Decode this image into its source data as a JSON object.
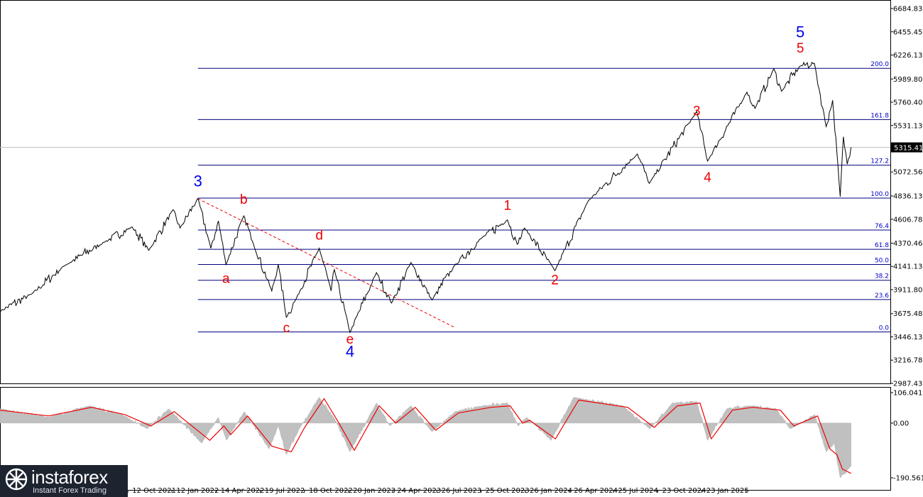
{
  "chart_data": [
    {
      "type": "line",
      "panel": "price",
      "last_price_label": "5315.41",
      "ylim": [
        2987.43,
        6684.83
      ],
      "price_ticks": [
        "6684.83",
        "6455.45",
        "6226.13",
        "5989.80",
        "5760.40",
        "5531.13",
        "5301.89",
        "5072.56",
        "4836.13",
        "4606.78",
        "4370.46",
        "4141.13",
        "3911.80",
        "3675.48",
        "3446.13",
        "3216.78",
        "2987.43"
      ],
      "x_labels": [
        "13 Jul 2021",
        "12 Oct 2021",
        "12 Jan 2022",
        "14 Apr 2022",
        "19 Jul 2022",
        "18 Oct 2022",
        "20 Jan 2023",
        "24 Apr 2023",
        "26 Jul 2023",
        "25 Oct 2023",
        "26 Jan 2024",
        "26 Apr 2024",
        "25 Jul 2024",
        "23 Oct 2024",
        "23 Jan 2025"
      ],
      "fib_levels": [
        {
          "label": "200.0",
          "price": 6095
        },
        {
          "label": "161.8",
          "price": 5590
        },
        {
          "label": "127.2",
          "price": 5140
        },
        {
          "label": "100.0",
          "price": 4815
        },
        {
          "label": "76.4",
          "price": 4500
        },
        {
          "label": "61.8",
          "price": 4310
        },
        {
          "label": "50.0",
          "price": 4160
        },
        {
          "label": "38.2",
          "price": 4005
        },
        {
          "label": "23.6",
          "price": 3815
        },
        {
          "label": "0.0",
          "price": 3495
        }
      ],
      "series": [
        {
          "values": [
            [
              "2021-01-01",
              3700
            ],
            [
              "2021-03-01",
              3870
            ],
            [
              "2021-05-01",
              4150
            ],
            [
              "2021-07-13",
              4380
            ],
            [
              "2021-09-03",
              4530
            ],
            [
              "2021-10-04",
              4300
            ],
            [
              "2021-11-18",
              4700
            ],
            [
              "2021-12-01",
              4520
            ],
            [
              "2022-01-03",
              4810
            ],
            [
              "2022-01-27",
              4320
            ],
            [
              "2022-02-10",
              4590
            ],
            [
              "2022-02-24",
              4160
            ],
            [
              "2022-03-29",
              4640
            ],
            [
              "2022-04-14",
              4390
            ],
            [
              "2022-05-20",
              3900
            ],
            [
              "2022-06-01",
              4160
            ],
            [
              "2022-06-16",
              3640
            ],
            [
              "2022-07-05",
              3830
            ],
            [
              "2022-08-16",
              4320
            ],
            [
              "2022-09-07",
              3900
            ],
            [
              "2022-09-13",
              4110
            ],
            [
              "2022-10-12",
              3490
            ],
            [
              "2022-11-30",
              4080
            ],
            [
              "2022-12-28",
              3780
            ],
            [
              "2023-02-02",
              4180
            ],
            [
              "2023-03-13",
              3810
            ],
            [
              "2023-04-24",
              4150
            ],
            [
              "2023-06-15",
              4430
            ],
            [
              "2023-07-31",
              4600
            ],
            [
              "2023-08-18",
              4360
            ],
            [
              "2023-09-01",
              4520
            ],
            [
              "2023-10-27",
              4100
            ],
            [
              "2023-12-28",
              4790
            ],
            [
              "2024-03-28",
              5250
            ],
            [
              "2024-04-19",
              4960
            ],
            [
              "2024-07-16",
              5670
            ],
            [
              "2024-08-05",
              5180
            ],
            [
              "2024-10-17",
              5860
            ],
            [
              "2024-11-01",
              5700
            ],
            [
              "2024-12-06",
              6090
            ],
            [
              "2024-12-20",
              5870
            ],
            [
              "2025-01-24",
              6120
            ],
            [
              "2025-02-19",
              6145
            ],
            [
              "2025-03-13",
              5520
            ],
            [
              "2025-03-25",
              5780
            ],
            [
              "2025-04-08",
              4830
            ],
            [
              "2025-04-14",
              5420
            ],
            [
              "2025-04-21",
              5150
            ],
            [
              "2025-04-28",
              5315
            ]
          ]
        }
      ],
      "annotations": [
        {
          "text": "3",
          "color": "blue",
          "date": "2022-01-03",
          "price": 4930
        },
        {
          "text": "b",
          "color": "red",
          "date": "2022-03-29",
          "price": 4760
        },
        {
          "text": "a",
          "color": "red",
          "date": "2022-02-24",
          "price": 3980
        },
        {
          "text": "d",
          "color": "red",
          "date": "2022-08-16",
          "price": 4405
        },
        {
          "text": "c",
          "color": "red",
          "date": "2022-06-16",
          "price": 3490
        },
        {
          "text": "e",
          "color": "red",
          "date": "2022-10-12",
          "price": 3380
        },
        {
          "text": "4",
          "color": "blue",
          "date": "2022-10-12",
          "price": 3250
        },
        {
          "text": "1",
          "color": "red",
          "date": "2023-07-31",
          "price": 4700
        },
        {
          "text": "2",
          "color": "red",
          "date": "2023-10-27",
          "price": 3965
        },
        {
          "text": "3",
          "color": "red",
          "date": "2024-07-16",
          "price": 5630
        },
        {
          "text": "4",
          "color": "red",
          "date": "2024-08-05",
          "price": 4975
        },
        {
          "text": "5",
          "color": "red",
          "date": "2025-01-24",
          "price": 6250
        },
        {
          "text": "5",
          "color": "blue",
          "date": "2025-01-24",
          "price": 6400
        }
      ],
      "trendline": {
        "style": "dashed",
        "color": "#ee0000",
        "from": [
          "2022-01-03",
          4810
        ],
        "to": [
          "2023-04-24",
          3540
        ]
      }
    },
    {
      "type": "area",
      "panel": "oscillator",
      "ticks": [
        "106.041",
        "0.00",
        "-190.561"
      ],
      "ylim": [
        -190.561,
        106.041
      ],
      "histogram": [
        [
          "2021-01-01",
          50
        ],
        [
          "2021-04-01",
          20
        ],
        [
          "2021-06-15",
          60
        ],
        [
          "2021-08-15",
          30
        ],
        [
          "2021-10-01",
          -20
        ],
        [
          "2021-11-10",
          50
        ],
        [
          "2022-01-10",
          -70
        ],
        [
          "2022-02-10",
          20
        ],
        [
          "2022-02-25",
          -60
        ],
        [
          "2022-03-30",
          40
        ],
        [
          "2022-05-15",
          -90
        ],
        [
          "2022-06-01",
          -10
        ],
        [
          "2022-06-16",
          -110
        ],
        [
          "2022-07-10",
          -20
        ],
        [
          "2022-08-16",
          90
        ],
        [
          "2022-09-15",
          10
        ],
        [
          "2022-10-12",
          -100
        ],
        [
          "2022-11-30",
          70
        ],
        [
          "2022-12-25",
          -10
        ],
        [
          "2023-02-02",
          60
        ],
        [
          "2023-03-13",
          -30
        ],
        [
          "2023-04-25",
          40
        ],
        [
          "2023-06-15",
          60
        ],
        [
          "2023-07-31",
          70
        ],
        [
          "2023-08-20",
          -10
        ],
        [
          "2023-09-05",
          20
        ],
        [
          "2023-10-20",
          -60
        ],
        [
          "2023-12-01",
          90
        ],
        [
          "2024-03-01",
          60
        ],
        [
          "2024-04-20",
          -20
        ],
        [
          "2024-06-01",
          70
        ],
        [
          "2024-07-16",
          75
        ],
        [
          "2024-08-05",
          -60
        ],
        [
          "2024-09-10",
          50
        ],
        [
          "2024-10-20",
          60
        ],
        [
          "2024-12-10",
          50
        ],
        [
          "2025-01-05",
          -20
        ],
        [
          "2025-02-20",
          30
        ],
        [
          "2025-03-13",
          -100
        ],
        [
          "2025-03-28",
          -70
        ],
        [
          "2025-04-08",
          -190
        ],
        [
          "2025-04-28",
          -150
        ]
      ],
      "signal": [
        [
          "2021-01-01",
          45
        ],
        [
          "2021-04-01",
          25
        ],
        [
          "2021-06-20",
          55
        ],
        [
          "2021-08-20",
          30
        ],
        [
          "2021-10-08",
          -10
        ],
        [
          "2021-11-20",
          40
        ],
        [
          "2022-01-25",
          -60
        ],
        [
          "2022-02-20",
          -10
        ],
        [
          "2022-03-05",
          -40
        ],
        [
          "2022-04-05",
          25
        ],
        [
          "2022-05-20",
          -80
        ],
        [
          "2022-06-25",
          -100
        ],
        [
          "2022-07-20",
          -15
        ],
        [
          "2022-08-25",
          85
        ],
        [
          "2022-09-20",
          5
        ],
        [
          "2022-10-20",
          -95
        ],
        [
          "2022-12-05",
          60
        ],
        [
          "2023-01-05",
          0
        ],
        [
          "2023-02-10",
          55
        ],
        [
          "2023-03-20",
          -25
        ],
        [
          "2023-05-01",
          35
        ],
        [
          "2023-07-01",
          55
        ],
        [
          "2023-08-05",
          60
        ],
        [
          "2023-08-28",
          0
        ],
        [
          "2023-09-10",
          10
        ],
        [
          "2023-10-28",
          -55
        ],
        [
          "2023-12-10",
          80
        ],
        [
          "2024-03-10",
          55
        ],
        [
          "2024-04-28",
          -15
        ],
        [
          "2024-06-10",
          60
        ],
        [
          "2024-07-22",
          70
        ],
        [
          "2024-08-12",
          -55
        ],
        [
          "2024-09-20",
          45
        ],
        [
          "2024-10-28",
          55
        ],
        [
          "2024-12-18",
          45
        ],
        [
          "2025-01-12",
          -10
        ],
        [
          "2025-02-25",
          25
        ],
        [
          "2025-03-20",
          -90
        ],
        [
          "2025-04-02",
          -110
        ],
        [
          "2025-04-12",
          -160
        ],
        [
          "2025-04-28",
          -175
        ]
      ]
    }
  ],
  "branding": {
    "logo_name": "instaforex",
    "logo_tagline": "Instant Forex Trading",
    "logo_icon": "instaforex-logo-icon"
  }
}
